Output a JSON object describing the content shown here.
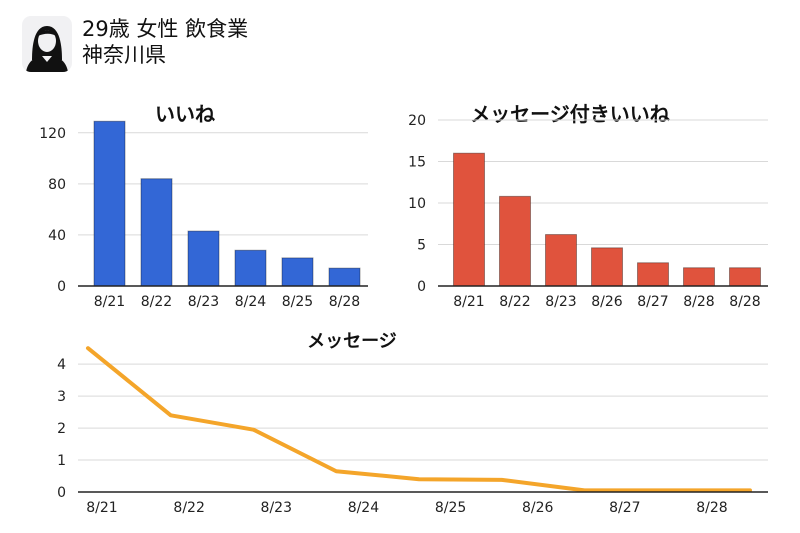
{
  "profile": {
    "line1": "29歳  女性  飲食業",
    "line2": "神奈川県",
    "icon": "user-female-icon"
  },
  "chart_data": [
    {
      "type": "bar",
      "title": "いいね",
      "categories": [
        "8/21",
        "8/22",
        "8/23",
        "8/24",
        "8/25",
        "8/28"
      ],
      "values": [
        129,
        84,
        43,
        28,
        22,
        14
      ],
      "yticks": [
        0,
        40,
        80,
        120
      ],
      "ylim": [
        0,
        130
      ],
      "color": "#3367d6",
      "grid": true
    },
    {
      "type": "bar",
      "title": "メッセージ付きいいね",
      "categories": [
        "8/21",
        "8/22",
        "8/23",
        "8/26",
        "8/27",
        "8/28",
        "8/28"
      ],
      "values": [
        16,
        10.8,
        6.2,
        4.6,
        2.8,
        2.2,
        2.2
      ],
      "yticks": [
        0,
        5,
        10,
        15,
        20
      ],
      "ylim": [
        0,
        20
      ],
      "color": "#e0533d",
      "grid": true
    },
    {
      "type": "line",
      "title": "メッセージ",
      "categories": [
        "8/21",
        "8/22",
        "8/23",
        "8/24",
        "8/25",
        "8/26",
        "8/27",
        "8/28",
        "8/28"
      ],
      "values": [
        4.5,
        2.4,
        1.95,
        0.65,
        0.4,
        0.38,
        0.05,
        0.05,
        0.05
      ],
      "yticks": [
        0,
        1,
        2,
        3,
        4
      ],
      "ylim": [
        0,
        4.6
      ],
      "color": "#f4a52a",
      "grid": true
    }
  ]
}
